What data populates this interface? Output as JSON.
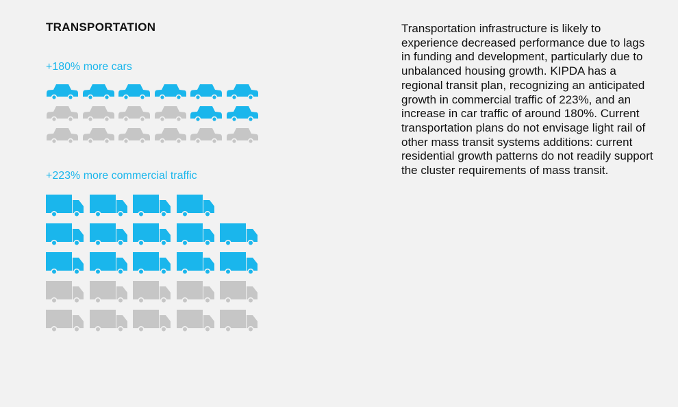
{
  "header": {
    "title": "TRANSPORTATION"
  },
  "cars": {
    "label": "+180% more cars",
    "rows": [
      [
        true,
        true,
        true,
        true,
        true,
        true
      ],
      [
        false,
        false,
        false,
        false,
        true,
        true
      ],
      [
        false,
        false,
        false,
        false,
        false,
        false
      ]
    ]
  },
  "commercial": {
    "label": "+223% more commercial traffic",
    "rows": [
      [
        true,
        true,
        true,
        true,
        null
      ],
      [
        true,
        true,
        true,
        true,
        true
      ],
      [
        true,
        true,
        true,
        true,
        true
      ],
      [
        false,
        false,
        false,
        false,
        false
      ],
      [
        false,
        false,
        false,
        false,
        false
      ]
    ]
  },
  "description": "Transportation infrastructure is likely to experience decreased performance due to lags in funding and development, particularly due to unbalanced housing growth. KIPDA has a regional transit plan, recognizing an anticipated growth in commercial traffic of 223%, and an increase in car traffic of around 180%. Current transportation plans do not envisage light rail of other mass transit systems additions: current residential growth patterns do not readily support the cluster requirements of mass transit.",
  "colors": {
    "accent": "#1ab6ec",
    "inactive": "#c6c6c6",
    "background": "#f2f2f2",
    "text": "#111111"
  },
  "icons": {
    "car": "car-icon",
    "truck": "truck-icon"
  }
}
